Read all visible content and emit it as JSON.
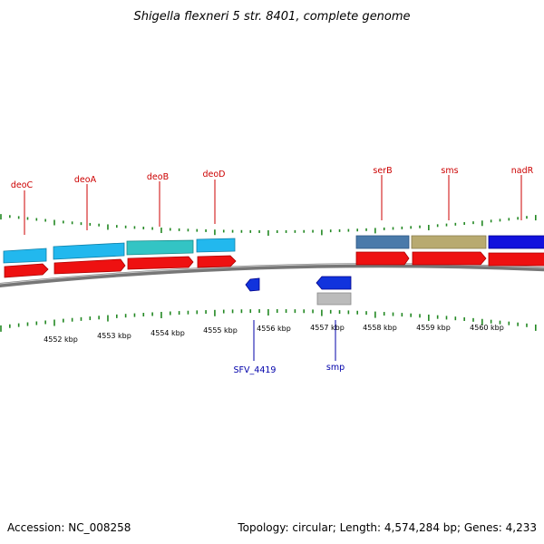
{
  "title": "Shigella flexneri 5 str. 8401, complete genome",
  "footer": {
    "accession": "Accession: NC_008258",
    "summary": "Topology: circular; Length: 4,574,284 bp; Genes: 4,233"
  },
  "colors": {
    "forward_label": "#cc0000",
    "reverse_label": "#0000aa",
    "cds": "#ee1111",
    "tick": "#228822",
    "backbone": "#777777"
  },
  "scale_labels": [
    "4552 kbp",
    "4553 kbp",
    "4554 kbp",
    "4555 kbp",
    "4556 kbp",
    "4557 kbp",
    "4558 kbp",
    "4559 kbp",
    "4560 kbp"
  ],
  "gene_labels": {
    "forward": [
      "deoC",
      "deoA",
      "deoB",
      "deoD",
      "serB",
      "sms",
      "nadR"
    ],
    "reverse": [
      "SFV_4419",
      "smp"
    ]
  },
  "gene_colors": {
    "deoC": "#22b8ee",
    "deoA": "#22b8ee",
    "deoB": "#33c4c4",
    "deoD": "#22b8ee",
    "serB": "#4a7aaa",
    "sms": "#b8aa70",
    "nadR": "#1111dd",
    "SFV_4419": "#1133dd",
    "smp": "#1133dd",
    "smp_rna": "#bbbbbb"
  }
}
